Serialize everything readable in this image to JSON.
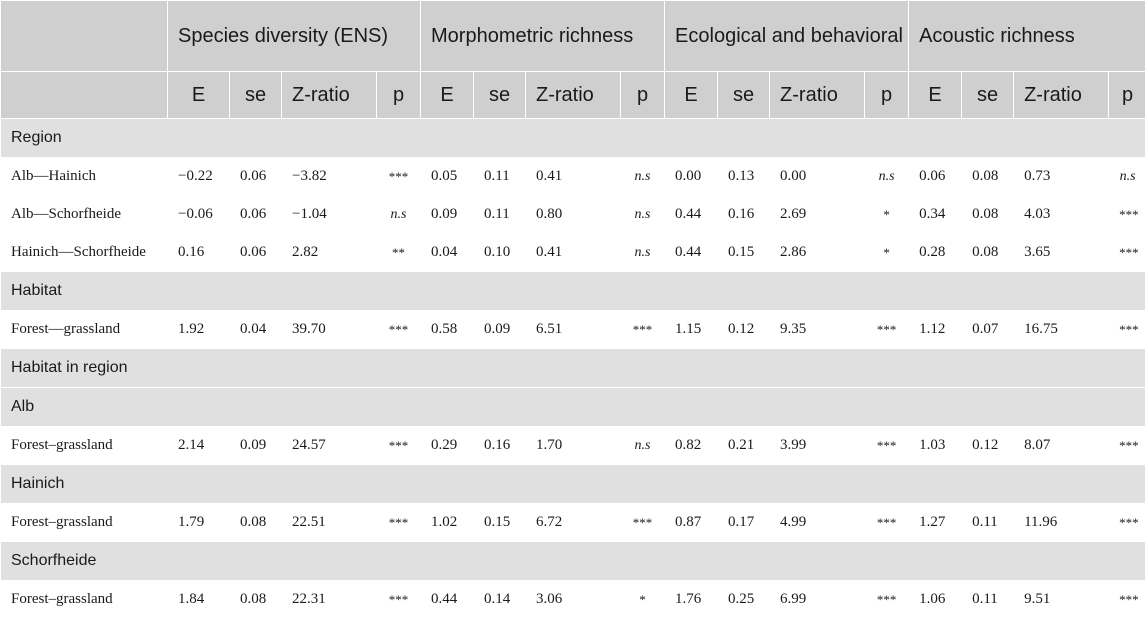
{
  "table": {
    "groups": [
      "Species diversity (ENS)",
      "Morphometric richness",
      "Ecological and behavioral richness",
      "Acoustic richness"
    ],
    "subheaders": [
      "E",
      "se",
      "Z-ratio",
      "p"
    ],
    "sections": [
      {
        "title": "Region",
        "rows": [
          {
            "label": "Alb—Hainich",
            "values": [
              "−0.22",
              "0.06",
              "−3.82",
              "***",
              "0.05",
              "0.11",
              "0.41",
              "n.s",
              "0.00",
              "0.13",
              "0.00",
              "n.s",
              "0.06",
              "0.08",
              "0.73",
              "n.s"
            ]
          },
          {
            "label": "Alb—Schorfheide",
            "values": [
              "−0.06",
              "0.06",
              "−1.04",
              "n.s",
              "0.09",
              "0.11",
              "0.80",
              "n.s",
              "0.44",
              "0.16",
              "2.69",
              "*",
              "0.34",
              "0.08",
              "4.03",
              "***"
            ]
          },
          {
            "label": "Hainich—Schorfheide",
            "values": [
              "0.16",
              "0.06",
              "2.82",
              "**",
              "0.04",
              "0.10",
              "0.41",
              "n.s",
              "0.44",
              "0.15",
              "2.86",
              "*",
              "0.28",
              "0.08",
              "3.65",
              "***"
            ]
          }
        ]
      },
      {
        "title": "Habitat",
        "rows": [
          {
            "label": "Forest—grassland",
            "values": [
              "1.92",
              "0.04",
              "39.70",
              "***",
              "0.58",
              "0.09",
              "6.51",
              "***",
              "1.15",
              "0.12",
              "9.35",
              "***",
              "1.12",
              "0.07",
              "16.75",
              "***"
            ]
          }
        ]
      },
      {
        "title": "Habitat in region",
        "rows": []
      },
      {
        "title": "Alb",
        "rows": [
          {
            "label": "Forest–grassland",
            "values": [
              "2.14",
              "0.09",
              "24.57",
              "***",
              "0.29",
              "0.16",
              "1.70",
              "n.s",
              "0.82",
              "0.21",
              "3.99",
              "***",
              "1.03",
              "0.12",
              "8.07",
              "***"
            ]
          }
        ]
      },
      {
        "title": "Hainich",
        "rows": [
          {
            "label": "Forest–grassland",
            "values": [
              "1.79",
              "0.08",
              "22.51",
              "***",
              "1.02",
              "0.15",
              "6.72",
              "***",
              "0.87",
              "0.17",
              "4.99",
              "***",
              "1.27",
              "0.11",
              "11.96",
              "***"
            ]
          }
        ]
      },
      {
        "title": "Schorfheide",
        "rows": [
          {
            "label": "Forest–grassland",
            "values": [
              "1.84",
              "0.08",
              "22.31",
              "***",
              "0.44",
              "0.14",
              "3.06",
              "*",
              "1.76",
              "0.25",
              "6.99",
              "***",
              "1.06",
              "0.11",
              "9.51",
              "***"
            ]
          }
        ]
      }
    ]
  }
}
